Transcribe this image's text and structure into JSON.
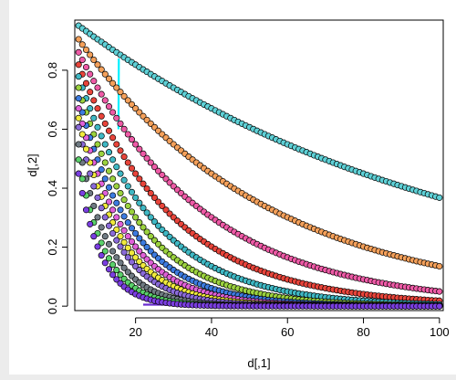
{
  "chart_data": {
    "type": "scatter",
    "title": "",
    "xlabel": "d[,1]",
    "ylabel": "d[,2]",
    "xlim": [
      4,
      101
    ],
    "ylim": [
      -0.015,
      0.97
    ],
    "x_ticks": [
      "20",
      "40",
      "60",
      "80",
      "100"
    ],
    "y_ticks": [
      "0.0",
      "0.2",
      "0.4",
      "0.6",
      "0.8"
    ],
    "x_tick_values": [
      20,
      40,
      60,
      80,
      100
    ],
    "y_tick_values": [
      0.0,
      0.2,
      0.4,
      0.6,
      0.8
    ],
    "grid": false,
    "legend": "none",
    "x": {
      "start": 5,
      "end": 100,
      "step": 1
    },
    "series": [
      {
        "rate": 0.01,
        "color": "#5ed0d6",
        "values_at": {
          "5": 0.95,
          "20": 0.82,
          "40": 0.67,
          "60": 0.55,
          "80": 0.45,
          "100": 0.37
        }
      },
      {
        "rate": 0.02,
        "color": "#f4a05a",
        "values_at": {
          "5": 0.9,
          "20": 0.67,
          "40": 0.45,
          "60": 0.3,
          "80": 0.2,
          "100": 0.14
        }
      },
      {
        "rate": 0.03,
        "color": "#ee5aa6",
        "values_at": {
          "5": 0.86,
          "20": 0.55,
          "40": 0.3,
          "60": 0.17,
          "80": 0.09,
          "100": 0.05
        }
      },
      {
        "rate": 0.04,
        "color": "#e8443a",
        "values_at": {
          "5": 0.82,
          "20": 0.45,
          "40": 0.2,
          "60": 0.09,
          "80": 0.04,
          "100": 0.02
        }
      },
      {
        "rate": 0.05,
        "color": "#3fb8c4",
        "values_at": {
          "5": 0.78,
          "20": 0.37,
          "40": 0.14,
          "60": 0.05,
          "80": 0.02,
          "100": 0.01
        }
      },
      {
        "rate": 0.06,
        "color": "#9bd23e",
        "values_at": {
          "5": 0.74,
          "20": 0.3,
          "40": 0.09,
          "60": 0.03,
          "80": 0.01,
          "100": 0.0
        }
      },
      {
        "rate": 0.07,
        "color": "#3c7be0",
        "values_at": {
          "5": 0.7,
          "20": 0.25,
          "40": 0.06,
          "60": 0.01,
          "80": 0.0,
          "100": 0.0
        }
      },
      {
        "rate": 0.08,
        "color": "#e060d8",
        "values_at": {
          "5": 0.67,
          "20": 0.2,
          "40": 0.04,
          "60": 0.01,
          "80": 0.0,
          "100": 0.0
        }
      },
      {
        "rate": 0.09,
        "color": "#f0ea3c",
        "values_at": {
          "5": 0.64,
          "20": 0.17,
          "40": 0.03,
          "60": 0.0,
          "80": 0.0,
          "100": 0.0
        }
      },
      {
        "rate": 0.1,
        "color": "#8a6ad8",
        "values_at": {
          "5": 0.61,
          "20": 0.14,
          "40": 0.02,
          "60": 0.0,
          "80": 0.0,
          "100": 0.0
        }
      },
      {
        "rate": 0.12,
        "color": "#6f7a82",
        "values_at": {
          "5": 0.55,
          "20": 0.09,
          "40": 0.01,
          "60": 0.0,
          "80": 0.0,
          "100": 0.0
        }
      },
      {
        "rate": 0.14,
        "color": "#5ad06a",
        "values_at": {
          "5": 0.5,
          "20": 0.06,
          "40": 0.0,
          "60": 0.0,
          "80": 0.0,
          "100": 0.0
        }
      },
      {
        "rate": 0.16,
        "color": "#7a3ee0",
        "values_at": {
          "5": 0.45,
          "20": 0.04,
          "40": 0.0,
          "60": 0.0,
          "80": 0.0,
          "100": 0.0
        }
      }
    ],
    "series_formula": "y = exp(-rate * x)",
    "overlay_lines": [
      {
        "color": "#00f0ff",
        "points": [
          [
            15.5,
            0.6
          ],
          [
            15.6,
            0.84
          ]
        ]
      },
      {
        "color": "#6a2ed0",
        "points": [
          [
            22,
            0.005
          ],
          [
            100,
            0.005
          ]
        ]
      }
    ]
  }
}
